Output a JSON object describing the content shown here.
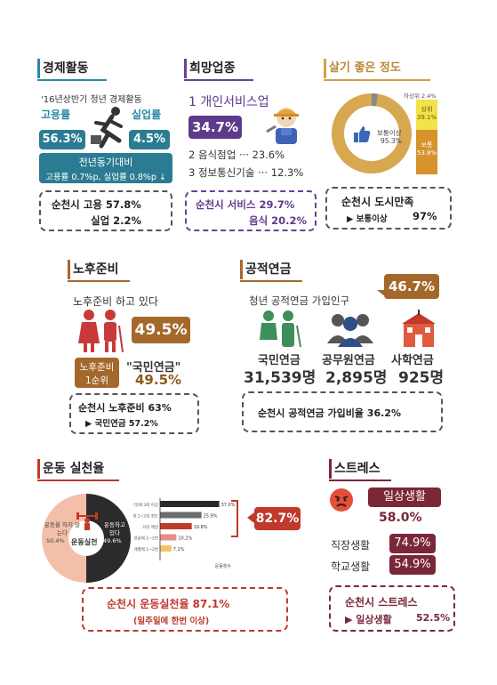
{
  "economy": {
    "title": "경제활동",
    "subtitle": "'16년상반기 청년 경제활동",
    "employment_label": "고용률",
    "employment_value": "56.3%",
    "unemployment_label": "실업률",
    "unemployment_value": "4.5%",
    "yoy_title": "전년동기대비",
    "yoy_detail": "고용률 0.7%p, 실업률 0.8%p ↓",
    "box_line1": "순천시 고용 57.8%",
    "box_line2": "실업 2.2%"
  },
  "jobs": {
    "title": "희망업종",
    "first": "1 개인서비스업",
    "first_value": "34.7%",
    "second": "2 음식점업 ··· 23.6%",
    "third": "3 정보통신기술 ··· 12.3%",
    "box_line1": "순천시 서비스 29.7%",
    "box_line2": "음식 20.2%"
  },
  "living": {
    "title": "살기 좋은 정도",
    "low_label": "하상위 2.4%",
    "top_label": "상위",
    "top_value": "39.1%",
    "mid_label": "보통이상",
    "mid_value": "95.3%",
    "bottom_label": "보통",
    "bottom_value": "53.8%",
    "box_line1": "순천시 도시만족",
    "box_line2_label": "▶ 보통이상",
    "box_line2_value": "97%",
    "colors": {
      "ring": "#d8a850",
      "blue": "#5a7fbf",
      "green": "#9fb842"
    }
  },
  "retirement": {
    "title": "노후준비",
    "subtitle": "노후준비 하고 있다",
    "value": "49.5%",
    "rank_badge_1": "노후준비",
    "rank_badge_2": "1순위",
    "pension_label": "\"국민연금\"",
    "pension_value": "49.5%",
    "box_line1": "순천시 노후준비 63%",
    "box_line2": "▶ 국민연금 57.2%"
  },
  "pension": {
    "title": "공적연금",
    "subtitle": "청년 공적연금 가입인구",
    "rate": "46.7%",
    "national_label": "국민연금",
    "national_value": "31,539명",
    "civil_label": "공무원연금",
    "civil_value": "2,895명",
    "private_label": "사학연금",
    "private_value": "925명",
    "box_text": "순천시 공적연금 가입비율  36.2%"
  },
  "exercise": {
    "title": "운동 실천율",
    "no_label": "운동을 하지 않는다",
    "no_value": "50.4%",
    "yes_label": "운동하고 있다",
    "yes_value": "49.6%",
    "center_label": "운동실천",
    "total_value": "82.7%",
    "axis_label": "운동횟수",
    "box_line1": "순천시  운동실천율  87.1%",
    "box_line2": "(일주일에 한번 이상)"
  },
  "chart_data": {
    "type": "bar",
    "categories": [
      "1주일에 3회 이상",
      "1주일에 1~2회 정도",
      "거의 매일",
      "한달에 1~2번",
      "3개월에 1~2번"
    ],
    "values": [
      37.0,
      25.9,
      19.8,
      10.2,
      7.1
    ],
    "value_labels": [
      "37.0%",
      "25.9%",
      "19.8%",
      "10.2%",
      "7.1%"
    ],
    "xlabel": "운동횟수",
    "colors": [
      "#2a2a2a",
      "#6b6b6b",
      "#c0392b",
      "#e98b8b",
      "#f2c265"
    ]
  },
  "stress": {
    "title": "스트레스",
    "daily_label": "일상생활",
    "daily_value": "58.0%",
    "work_label": "직장생활",
    "work_value": "74.9%",
    "school_label": "학교생활",
    "school_value": "54.9%",
    "box_line1": "순천시  스트레스",
    "box_line2_label": "▶ 일상생활",
    "box_line2_value": "52.5%"
  }
}
